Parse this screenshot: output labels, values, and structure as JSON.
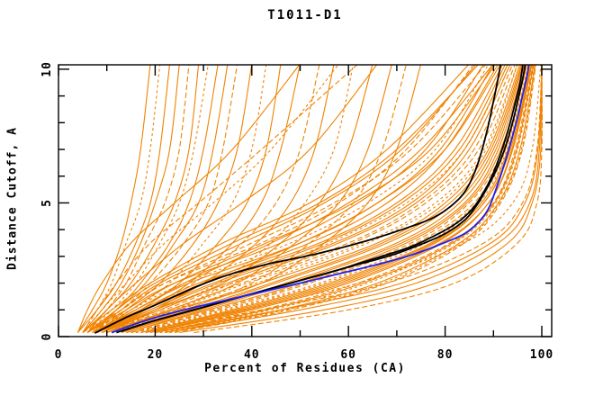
{
  "title": "T1011-D1",
  "chart_data": {
    "type": "line",
    "title": "T1011-D1",
    "xlabel": "Percent of Residues (CA)",
    "ylabel": "Distance Cutoff, A",
    "xlim": [
      0,
      100
    ],
    "ylim": [
      0,
      10
    ],
    "x_ticks": [
      0,
      20,
      40,
      60,
      80,
      100
    ],
    "x_minor_step": 10,
    "y_ticks": [
      0,
      5,
      10
    ],
    "y_minor_step": 1,
    "grid": false,
    "legend_position": "none",
    "colors": {
      "ensemble": "#f08200",
      "highlight": "#2020f0",
      "reference": "#000000",
      "frame": "#000000",
      "background": "#ffffff"
    },
    "series": [
      {
        "name": "reference-black-1",
        "color": "#000000",
        "points": [
          [
            7.5,
            0.13
          ],
          [
            11,
            0.45
          ],
          [
            15,
            0.8
          ],
          [
            19,
            1.1
          ],
          [
            24,
            1.5
          ],
          [
            29,
            1.9
          ],
          [
            35,
            2.3
          ],
          [
            43,
            2.7
          ],
          [
            51,
            3.0
          ],
          [
            58,
            3.3
          ],
          [
            65,
            3.65
          ],
          [
            71,
            4.0
          ],
          [
            77,
            4.4
          ],
          [
            81,
            4.85
          ],
          [
            84,
            5.4
          ],
          [
            86,
            6.1
          ],
          [
            87.5,
            6.9
          ],
          [
            88.8,
            7.8
          ],
          [
            90,
            8.8
          ],
          [
            91,
            9.7
          ],
          [
            91.5,
            10.2
          ]
        ]
      },
      {
        "name": "reference-black-2",
        "color": "#000000",
        "points": [
          [
            12,
            0.15
          ],
          [
            18,
            0.5
          ],
          [
            25,
            0.85
          ],
          [
            32,
            1.2
          ],
          [
            40,
            1.6
          ],
          [
            48,
            2.0
          ],
          [
            55,
            2.35
          ],
          [
            62,
            2.7
          ],
          [
            69,
            3.05
          ],
          [
            75,
            3.45
          ],
          [
            80,
            3.85
          ],
          [
            84,
            4.35
          ],
          [
            86.5,
            4.9
          ],
          [
            88.5,
            5.5
          ],
          [
            90.5,
            6.2
          ],
          [
            92.3,
            7.0
          ],
          [
            93.8,
            7.9
          ],
          [
            95,
            8.8
          ],
          [
            96,
            9.6
          ],
          [
            96.6,
            10.2
          ]
        ]
      },
      {
        "name": "reference-black-3",
        "color": "#000000",
        "points": [
          [
            13,
            0.2
          ],
          [
            20,
            0.6
          ],
          [
            27,
            0.95
          ],
          [
            35,
            1.35
          ],
          [
            43,
            1.75
          ],
          [
            51,
            2.15
          ],
          [
            58,
            2.5
          ],
          [
            65,
            2.9
          ],
          [
            72,
            3.3
          ],
          [
            77,
            3.7
          ],
          [
            82,
            4.2
          ],
          [
            85.5,
            4.75
          ],
          [
            87.8,
            5.35
          ],
          [
            89.8,
            6.05
          ],
          [
            91.5,
            6.85
          ],
          [
            93,
            7.7
          ],
          [
            94.3,
            8.6
          ],
          [
            95.5,
            9.5
          ],
          [
            96.1,
            10.2
          ]
        ]
      },
      {
        "name": "highlight-blue",
        "color": "#2020f0",
        "points": [
          [
            11,
            0.15
          ],
          [
            18,
            0.6
          ],
          [
            26,
            1.0
          ],
          [
            38,
            1.5
          ],
          [
            50,
            2.0
          ],
          [
            58,
            2.35
          ],
          [
            66,
            2.7
          ],
          [
            73,
            3.05
          ],
          [
            79,
            3.45
          ],
          [
            84,
            3.85
          ],
          [
            87,
            4.3
          ],
          [
            89,
            4.8
          ],
          [
            90.5,
            5.5
          ],
          [
            92,
            6.3
          ],
          [
            93.5,
            7.2
          ],
          [
            95,
            8.2
          ],
          [
            96,
            9.0
          ],
          [
            97,
            9.8
          ],
          [
            97.3,
            10.2
          ]
        ]
      }
    ],
    "ensemble_cutoff_anchors": [
      0.15,
      1,
      2,
      3.5,
      5,
      7,
      10.2
    ],
    "ensemble_percent_at_anchors": [
      [
        6,
        14,
        24,
        46,
        62,
        76,
        88
      ],
      [
        7,
        16,
        27,
        50,
        66,
        79,
        90
      ],
      [
        5,
        13,
        22,
        42,
        58,
        72,
        86
      ],
      [
        8,
        18,
        30,
        54,
        70,
        82,
        92
      ],
      [
        6,
        15,
        26,
        48,
        64,
        78,
        89
      ],
      [
        9,
        20,
        33,
        57,
        73,
        84,
        93
      ],
      [
        7,
        17,
        29,
        52,
        68,
        80,
        91
      ],
      [
        10,
        22,
        36,
        60,
        75,
        86,
        94
      ],
      [
        8,
        19,
        32,
        55,
        71,
        83,
        92.5
      ],
      [
        11,
        24,
        39,
        63,
        78,
        88,
        95
      ],
      [
        9,
        21,
        35,
        58,
        74,
        85,
        93.5
      ],
      [
        12,
        26,
        42,
        66,
        80,
        89,
        95.5
      ],
      [
        10,
        23,
        38,
        61,
        76,
        87,
        94.5
      ],
      [
        13,
        28,
        45,
        68,
        82,
        90,
        96
      ],
      [
        11,
        25,
        41,
        64,
        79,
        88.5,
        95
      ],
      [
        14,
        30,
        48,
        71,
        84,
        91,
        96.5
      ],
      [
        12,
        27,
        44,
        67,
        81,
        89.5,
        95.8
      ],
      [
        15,
        32,
        51,
        73,
        85,
        92,
        97
      ],
      [
        13,
        29,
        47,
        70,
        83,
        90.5,
        96.2
      ],
      [
        16,
        34,
        54,
        75,
        86.5,
        92.5,
        97.3
      ],
      [
        14,
        31,
        50,
        72,
        84.5,
        91.5,
        96.8
      ],
      [
        17,
        36,
        56,
        77,
        87.5,
        93,
        97.5
      ],
      [
        15,
        33,
        52,
        74,
        86,
        92.2,
        97
      ],
      [
        18,
        38,
        58,
        78,
        88,
        93.5,
        97.8
      ],
      [
        16,
        35,
        55,
        76,
        87,
        92.8,
        97.4
      ],
      [
        19,
        40,
        60,
        79.5,
        89,
        94,
        98
      ],
      [
        17,
        37,
        57,
        77.5,
        88,
        93.2,
        97.6
      ],
      [
        20,
        42,
        62,
        81,
        90,
        94.5,
        98.2
      ],
      [
        18,
        39,
        59,
        79,
        89,
        93.8,
        97.9
      ],
      [
        21,
        44,
        64,
        82,
        90.5,
        95,
        98.4
      ],
      [
        9,
        17,
        26,
        44,
        60,
        75,
        90
      ],
      [
        6,
        12,
        20,
        36,
        54,
        70,
        87
      ],
      [
        7,
        14,
        22,
        40,
        57,
        73,
        88.5
      ],
      [
        10,
        20,
        30,
        50,
        66,
        80,
        91.5
      ],
      [
        12,
        24,
        36,
        56,
        72,
        84,
        93
      ],
      [
        8,
        15,
        24,
        43,
        61,
        77,
        90.5
      ],
      [
        22,
        46,
        66,
        83,
        91,
        95.5,
        98.6
      ],
      [
        24,
        48,
        68,
        84,
        91.5,
        96,
        98.8
      ],
      [
        20,
        43,
        63,
        81.5,
        90.2,
        94.8,
        98.3
      ],
      [
        23,
        47,
        67,
        83.5,
        91.2,
        95.8,
        98.7
      ],
      [
        5,
        11,
        19,
        34,
        52,
        68,
        85
      ],
      [
        6,
        13,
        21,
        38,
        55,
        71,
        86.5
      ],
      [
        18,
        42,
        68,
        88,
        96,
        99,
        100
      ],
      [
        22,
        50,
        74,
        91,
        97.5,
        99.5,
        100
      ],
      [
        15,
        38,
        62,
        84,
        94,
        98,
        99.8
      ],
      [
        25,
        55,
        78,
        93,
        98,
        99.8,
        100
      ],
      [
        20,
        46,
        71,
        89.5,
        96.5,
        99.2,
        100
      ],
      [
        28,
        60,
        82,
        95,
        99,
        100,
        100
      ],
      [
        4,
        7,
        10,
        13,
        15,
        17,
        19
      ],
      [
        5,
        8,
        11,
        14,
        17,
        19,
        21
      ],
      [
        4,
        8,
        12,
        16,
        19,
        21,
        23
      ],
      [
        5,
        9,
        13,
        17,
        20,
        23,
        25
      ],
      [
        6,
        10,
        14,
        18,
        22,
        25,
        27
      ],
      [
        5,
        10,
        15,
        20,
        24,
        27,
        29
      ],
      [
        6,
        11,
        16,
        21,
        25,
        28,
        31
      ],
      [
        7,
        12,
        17,
        23,
        27,
        30,
        33
      ],
      [
        6,
        12,
        18,
        24,
        29,
        32,
        35
      ],
      [
        7,
        13,
        19,
        26,
        31,
        34,
        37
      ],
      [
        8,
        14,
        21,
        28,
        33,
        37,
        40
      ],
      [
        7,
        15,
        23,
        30,
        36,
        40,
        43
      ],
      [
        8,
        16,
        25,
        33,
        39,
        43,
        46
      ],
      [
        9,
        18,
        27,
        36,
        42,
        46,
        50
      ],
      [
        8,
        17,
        28,
        38,
        45,
        50,
        54
      ],
      [
        9,
        19,
        30,
        41,
        48,
        53,
        57
      ],
      [
        10,
        21,
        33,
        44,
        51,
        57,
        61
      ],
      [
        9,
        20,
        34,
        46,
        54,
        60,
        65
      ],
      [
        10,
        23,
        37,
        49,
        58,
        64,
        69
      ],
      [
        11,
        25,
        40,
        52,
        61,
        67,
        72
      ],
      [
        10,
        24,
        42,
        55,
        64,
        70,
        75
      ],
      [
        5,
        9,
        14,
        22,
        32,
        44,
        58
      ],
      [
        6,
        10,
        16,
        26,
        38,
        52,
        66
      ],
      [
        4,
        6,
        9,
        15,
        24,
        36,
        50
      ],
      [
        5,
        8,
        12,
        19,
        29,
        42,
        62
      ]
    ]
  }
}
